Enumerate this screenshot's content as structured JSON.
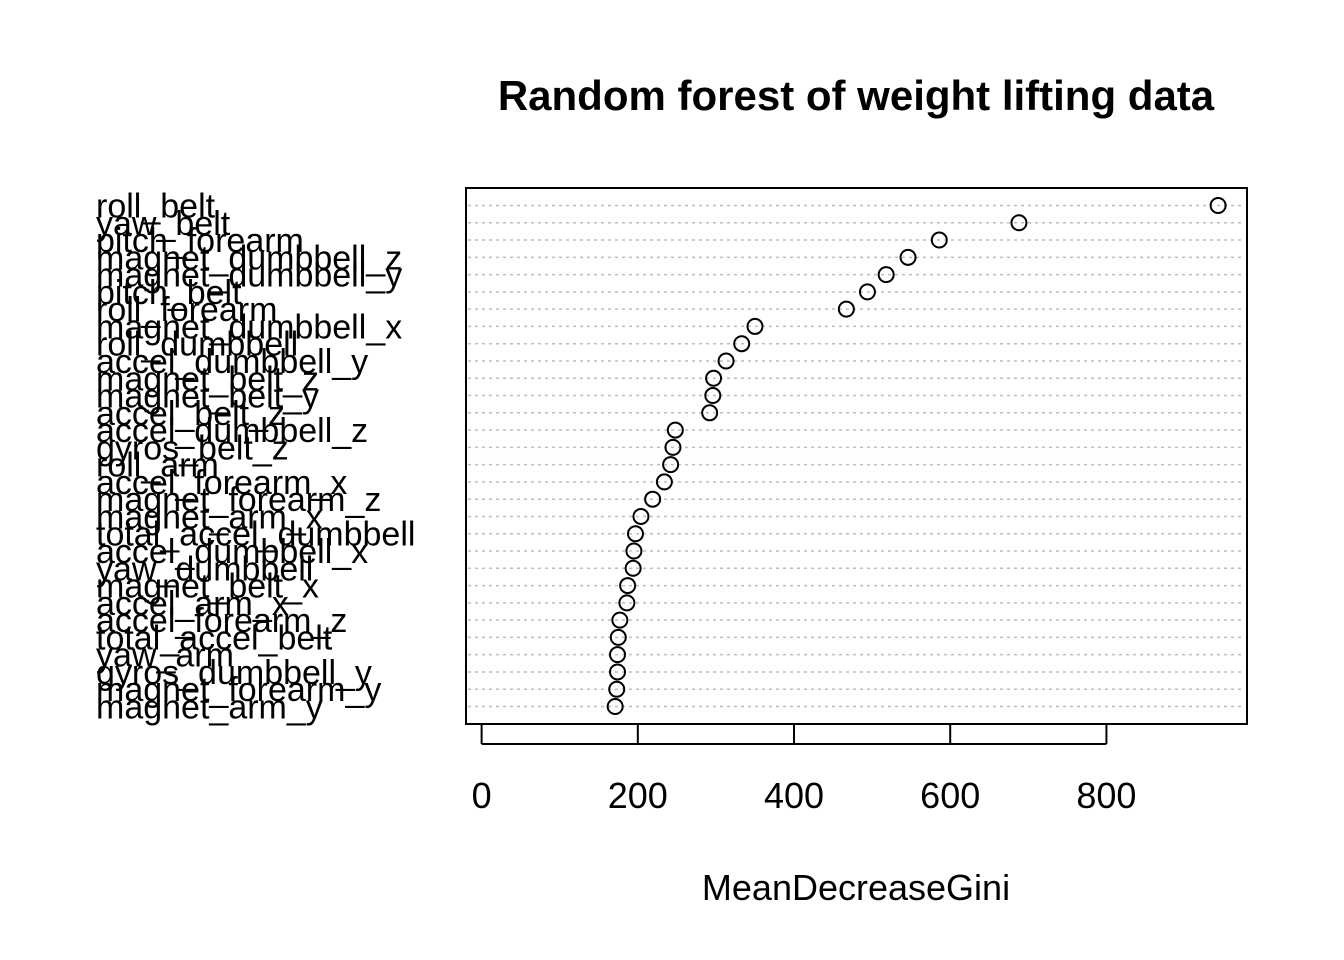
{
  "chart_data": {
    "type": "scatter",
    "subtype": "dotchart",
    "title": "Random forest of weight lifting data",
    "xlabel": "MeanDecreaseGini",
    "ylabel": "",
    "xlim": [
      -20,
      980
    ],
    "xticks": [
      0,
      200,
      400,
      600,
      800
    ],
    "grid": "dotted horizontal lines",
    "marker": "open circle",
    "categories": [
      "roll_belt",
      "yaw_belt",
      "pitch_forearm",
      "magnet_dumbbell_z",
      "magnet_dumbbell_y",
      "pitch_belt",
      "roll_forearm",
      "magnet_dumbbell_x",
      "roll_dumbbell",
      "accel_dumbbell_y",
      "magnet_belt_z",
      "magnet_belt_y",
      "accel_belt_z",
      "accel_dumbbell_z",
      "gyros_belt_z",
      "roll_arm",
      "accel_forearm_x",
      "magnet_forearm_z",
      "magnet_arm_x",
      "total_accel_dumbbell",
      "accel_dumbbell_x",
      "yaw_dumbbell",
      "magnet_belt_x",
      "accel_arm_x",
      "accel_forearm_z",
      "total_accel_belt",
      "yaw_arm",
      "gyros_dumbbell_y",
      "magnet_forearm_y",
      "magnet_arm_y"
    ],
    "values": [
      943,
      688,
      586,
      546,
      518,
      494,
      467,
      350,
      333,
      313,
      297,
      296,
      292,
      248,
      245,
      242,
      234,
      219,
      204,
      197,
      195,
      194,
      187,
      186,
      177,
      175,
      174,
      174,
      173,
      171
    ]
  }
}
